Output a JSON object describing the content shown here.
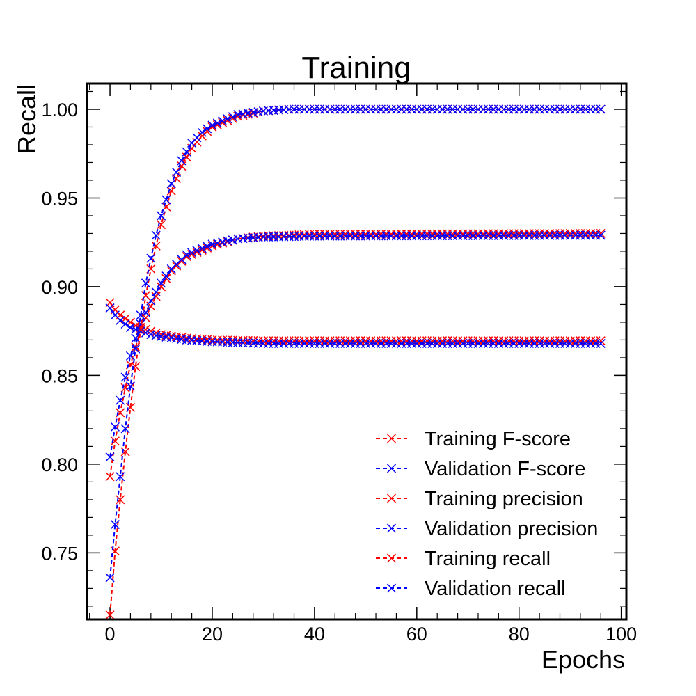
{
  "chart_data": {
    "type": "line",
    "title": "Training",
    "xlabel": "Epochs",
    "ylabel": "Recall",
    "xlim": [
      -4.5,
      101
    ],
    "ylim": [
      0.7125,
      1.0145
    ],
    "xticks": [
      0,
      20,
      40,
      60,
      80,
      100
    ],
    "xtick_labels": [
      "0",
      "20",
      "40",
      "60",
      "80",
      "100"
    ],
    "yticks": [
      0.75,
      0.8,
      0.85,
      0.9,
      0.95,
      1.0
    ],
    "ytick_labels": [
      "0.75",
      "0.80",
      "0.85",
      "0.90",
      "0.95",
      "1.00"
    ],
    "legend_position": "lower-right",
    "epochs": 97,
    "series": [
      {
        "name": "Training F-score",
        "color": "#ff0000",
        "marker": "x",
        "linestyle": "dashed",
        "anchors": [
          [
            0,
            0.793
          ],
          [
            1,
            0.813
          ],
          [
            2,
            0.829
          ],
          [
            3,
            0.843
          ],
          [
            4,
            0.856
          ],
          [
            5,
            0.866
          ],
          [
            6,
            0.876
          ],
          [
            8,
            0.889
          ],
          [
            10,
            0.9
          ],
          [
            12,
            0.909
          ],
          [
            15,
            0.917
          ],
          [
            20,
            0.923
          ],
          [
            25,
            0.927
          ],
          [
            30,
            0.9285
          ],
          [
            40,
            0.9295
          ],
          [
            96,
            0.93
          ]
        ]
      },
      {
        "name": "Validation F-score",
        "color": "#0000ff",
        "marker": "x",
        "linestyle": "dashed",
        "anchors": [
          [
            0,
            0.804
          ],
          [
            1,
            0.821
          ],
          [
            2,
            0.836
          ],
          [
            3,
            0.849
          ],
          [
            4,
            0.861
          ],
          [
            5,
            0.871
          ],
          [
            6,
            0.879
          ],
          [
            8,
            0.892
          ],
          [
            10,
            0.902
          ],
          [
            12,
            0.91
          ],
          [
            15,
            0.918
          ],
          [
            20,
            0.924
          ],
          [
            25,
            0.927
          ],
          [
            30,
            0.928
          ],
          [
            40,
            0.9285
          ],
          [
            96,
            0.929
          ]
        ]
      },
      {
        "name": "Training precision",
        "color": "#ff0000",
        "marker": "x",
        "linestyle": "dashed",
        "anchors": [
          [
            0,
            0.891
          ],
          [
            1,
            0.887
          ],
          [
            2,
            0.884
          ],
          [
            3,
            0.882
          ],
          [
            4,
            0.88
          ],
          [
            5,
            0.878
          ],
          [
            6,
            0.877
          ],
          [
            8,
            0.875
          ],
          [
            10,
            0.873
          ],
          [
            15,
            0.871
          ],
          [
            20,
            0.87
          ],
          [
            30,
            0.8695
          ],
          [
            96,
            0.8695
          ]
        ]
      },
      {
        "name": "Validation precision",
        "color": "#0000ff",
        "marker": "x",
        "linestyle": "dashed",
        "anchors": [
          [
            0,
            0.888
          ],
          [
            1,
            0.884
          ],
          [
            2,
            0.881
          ],
          [
            3,
            0.879
          ],
          [
            4,
            0.877
          ],
          [
            5,
            0.876
          ],
          [
            6,
            0.875
          ],
          [
            8,
            0.873
          ],
          [
            10,
            0.872
          ],
          [
            15,
            0.87
          ],
          [
            20,
            0.869
          ],
          [
            30,
            0.868
          ],
          [
            96,
            0.868
          ]
        ]
      },
      {
        "name": "Training recall",
        "color": "#ff0000",
        "marker": "x",
        "linestyle": "dashed",
        "anchors": [
          [
            0,
            0.715
          ],
          [
            1,
            0.751
          ],
          [
            2,
            0.78
          ],
          [
            3,
            0.807
          ],
          [
            4,
            0.832
          ],
          [
            5,
            0.855
          ],
          [
            6,
            0.876
          ],
          [
            7,
            0.895
          ],
          [
            8,
            0.91
          ],
          [
            9,
            0.923
          ],
          [
            10,
            0.935
          ],
          [
            11,
            0.945
          ],
          [
            12,
            0.954
          ],
          [
            14,
            0.968
          ],
          [
            16,
            0.978
          ],
          [
            18,
            0.985
          ],
          [
            20,
            0.99
          ],
          [
            25,
            0.996
          ],
          [
            30,
            0.999
          ],
          [
            35,
            1.0
          ],
          [
            96,
            1.0
          ]
        ]
      },
      {
        "name": "Validation recall",
        "color": "#0000ff",
        "marker": "x",
        "linestyle": "dashed",
        "anchors": [
          [
            0,
            0.736
          ],
          [
            1,
            0.766
          ],
          [
            2,
            0.793
          ],
          [
            3,
            0.82
          ],
          [
            4,
            0.844
          ],
          [
            5,
            0.865
          ],
          [
            6,
            0.884
          ],
          [
            7,
            0.902
          ],
          [
            8,
            0.916
          ],
          [
            9,
            0.929
          ],
          [
            10,
            0.94
          ],
          [
            11,
            0.949
          ],
          [
            12,
            0.958
          ],
          [
            14,
            0.971
          ],
          [
            16,
            0.981
          ],
          [
            18,
            0.987
          ],
          [
            20,
            0.991
          ],
          [
            25,
            0.997
          ],
          [
            30,
            0.999
          ],
          [
            35,
            1.0
          ],
          [
            96,
            1.0
          ]
        ]
      }
    ]
  }
}
